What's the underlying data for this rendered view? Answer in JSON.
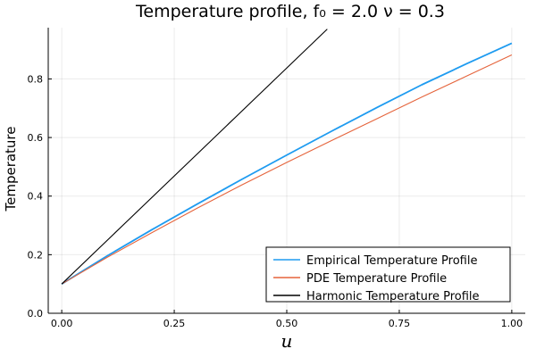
{
  "chart_data": {
    "type": "line",
    "title": "Temperature profile, f₀ = 2.0 ν = 0.3",
    "xlabel": "u",
    "ylabel": "Temperature",
    "xlim": [
      -0.03,
      1.03
    ],
    "ylim": [
      0.0,
      0.975
    ],
    "xticks": [
      0.0,
      0.25,
      0.5,
      0.75,
      1.0
    ],
    "xtick_labels": [
      "0.00",
      "0.25",
      "0.50",
      "0.75",
      "1.00"
    ],
    "yticks": [
      0.0,
      0.2,
      0.4,
      0.6,
      0.8
    ],
    "ytick_labels": [
      "0.0",
      "0.2",
      "0.4",
      "0.6",
      "0.8"
    ],
    "grid": true,
    "legend_position": "bottom-right",
    "series": [
      {
        "name": "Empirical Temperature Profile",
        "color": "#1e9bf0",
        "x": [
          0.0,
          0.1,
          0.2,
          0.3,
          0.4,
          0.5,
          0.6,
          0.7,
          0.8,
          0.9,
          1.0
        ],
        "y": [
          0.1,
          0.195,
          0.285,
          0.372,
          0.457,
          0.54,
          0.622,
          0.702,
          0.78,
          0.852,
          0.922
        ]
      },
      {
        "name": "PDE Temperature Profile",
        "color": "#e5643c",
        "x": [
          0.0,
          0.1,
          0.2,
          0.3,
          0.4,
          0.5,
          0.6,
          0.7,
          0.8,
          0.9,
          1.0
        ],
        "y": [
          0.1,
          0.19,
          0.275,
          0.358,
          0.438,
          0.515,
          0.59,
          0.664,
          0.738,
          0.81,
          0.882
        ]
      },
      {
        "name": "Harmonic Temperature Profile",
        "color": "#000000",
        "x": [
          0.0,
          0.59
        ],
        "y": [
          0.1,
          0.97
        ]
      }
    ]
  }
}
